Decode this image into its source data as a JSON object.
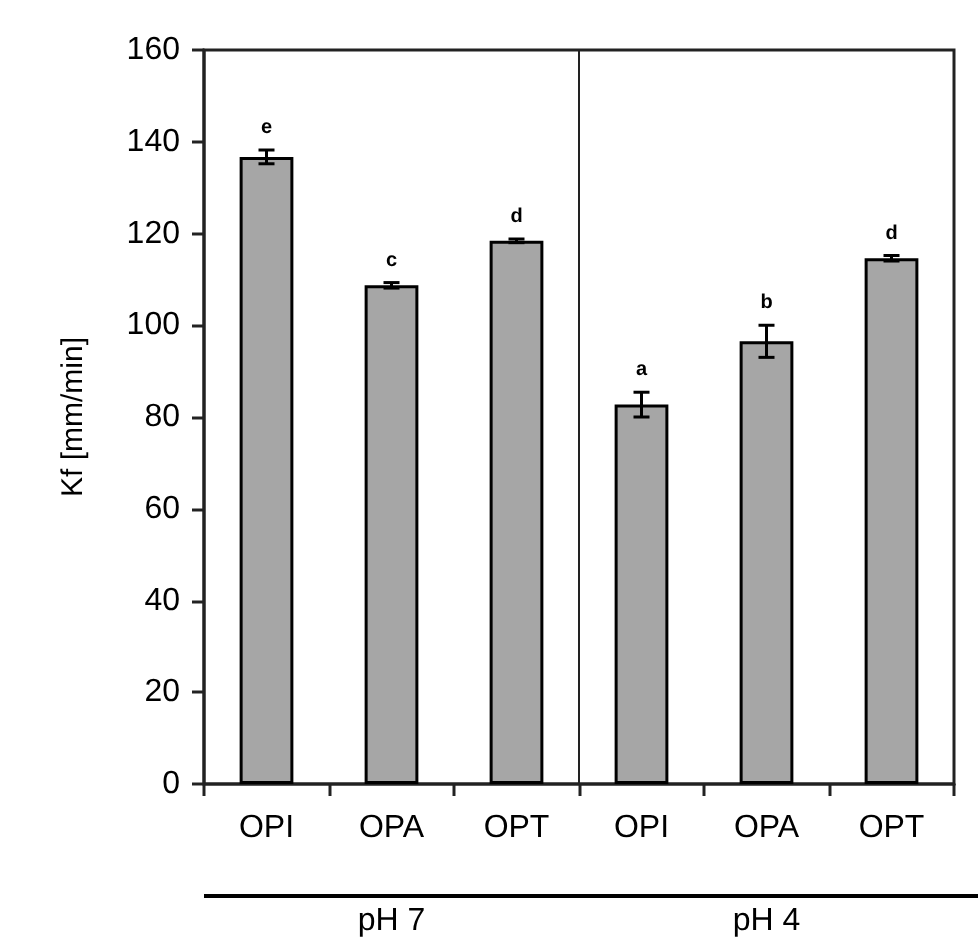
{
  "chart_data": {
    "type": "bar",
    "ylabel": "Kf [mm/min]",
    "categories": [
      "OPI",
      "OPA",
      "OPT",
      "OPI",
      "OPA",
      "OPT"
    ],
    "values": [
      136.7,
      108.7,
      118.4,
      82.7,
      96.5,
      114.6
    ],
    "errors": [
      1.5,
      0.6,
      0.4,
      2.7,
      3.5,
      0.6
    ],
    "value_labels": [
      "e",
      "c",
      "d",
      "a",
      "b",
      "d"
    ],
    "color": "#a6a6a6",
    "ylim": [
      0,
      160
    ],
    "yticks": [
      0,
      20,
      40,
      60,
      80,
      100,
      120,
      140,
      160
    ],
    "annotations": [
      "pH 7",
      "pH 4"
    ]
  }
}
